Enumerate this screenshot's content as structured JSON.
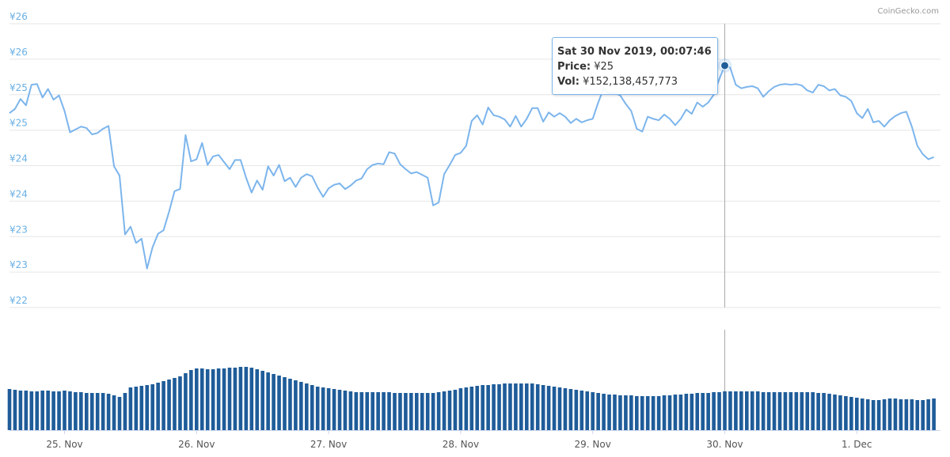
{
  "chart_data": {
    "type": "line",
    "credit": "CoinGecko.com",
    "categories": [
      null,
      null,
      null,
      null,
      null,
      null,
      null,
      null,
      null,
      null,
      "25. Nov",
      null,
      null,
      null,
      null,
      null,
      null,
      null,
      null,
      null,
      null,
      null,
      null,
      null,
      null,
      null,
      null,
      null,
      null,
      null,
      null,
      null,
      null,
      null,
      "26. Nov",
      null,
      null,
      null,
      null,
      null,
      null,
      null,
      null,
      null,
      null,
      null,
      null,
      null,
      null,
      null,
      null,
      null,
      null,
      null,
      null,
      null,
      null,
      null,
      "27. Nov",
      null,
      null,
      null,
      null,
      null,
      null,
      null,
      null,
      null,
      null,
      null,
      null,
      null,
      null,
      null,
      null,
      null,
      null,
      null,
      null,
      null,
      null,
      null,
      "28. Nov",
      null,
      null,
      null,
      null,
      null,
      null,
      null,
      null,
      null,
      null,
      null,
      null,
      null,
      null,
      null,
      null,
      null,
      null,
      null,
      null,
      null,
      null,
      null,
      "29. Nov",
      null,
      null,
      null,
      null,
      null,
      null,
      null,
      null,
      null,
      null,
      null,
      null,
      null,
      null,
      null,
      null,
      null,
      null,
      null,
      null,
      null,
      null,
      null,
      "30. Nov",
      null,
      null,
      null,
      null,
      null,
      null,
      null,
      null,
      null,
      null,
      null,
      null,
      null,
      null,
      null,
      null,
      null,
      null,
      null,
      null,
      null,
      null,
      null,
      "1. Dec",
      null,
      null,
      null,
      null,
      null,
      null,
      null,
      null,
      null,
      null,
      null,
      null,
      null,
      null
    ],
    "series": [
      {
        "color": "#7cb5ec",
        "values": [
          24.74,
          24.8,
          24.94,
          24.85,
          25.14,
          25.15,
          24.96,
          25.08,
          24.93,
          24.99,
          24.77,
          24.47,
          24.51,
          24.55,
          24.53,
          24.44,
          24.46,
          24.52,
          24.56,
          23.99,
          23.86,
          23.03,
          23.14,
          22.91,
          22.97,
          22.55,
          22.85,
          23.04,
          23.09,
          23.35,
          23.64,
          23.67,
          24.43,
          24.06,
          24.09,
          24.32,
          24.01,
          24.13,
          24.15,
          24.05,
          23.95,
          24.08,
          24.08,
          23.83,
          23.62,
          23.79,
          23.66,
          23.99,
          23.86,
          24.01,
          23.78,
          23.83,
          23.7,
          23.83,
          23.88,
          23.85,
          23.69,
          23.56,
          23.68,
          23.73,
          23.75,
          23.67,
          23.72,
          23.79,
          23.82,
          23.95,
          24.01,
          24.03,
          24.02,
          24.19,
          24.17,
          24.02,
          23.95,
          23.89,
          23.91,
          23.87,
          23.83,
          23.44,
          23.48,
          23.88,
          24.01,
          24.15,
          24.18,
          24.28,
          24.63,
          24.71,
          24.58,
          24.82,
          24.71,
          24.69,
          24.65,
          24.55,
          24.7,
          24.55,
          24.66,
          24.81,
          24.81,
          24.62,
          24.75,
          24.69,
          24.74,
          24.69,
          24.6,
          24.66,
          24.61,
          24.64,
          24.66,
          24.89,
          25.09,
          25.02,
          25.02,
          24.99,
          24.87,
          24.77,
          24.52,
          24.48,
          24.69,
          24.66,
          24.64,
          24.72,
          24.66,
          24.57,
          24.66,
          24.79,
          24.73,
          24.89,
          24.83,
          24.89,
          25.0,
          25.22,
          25.41,
          25.38,
          25.14,
          25.09,
          25.11,
          25.12,
          25.09,
          24.97,
          25.05,
          25.11,
          25.14,
          25.15,
          25.14,
          25.15,
          25.13,
          25.06,
          25.03,
          25.14,
          25.12,
          25.06,
          25.08,
          24.99,
          24.97,
          24.91,
          24.74,
          24.67,
          24.8,
          24.61,
          24.63,
          24.55,
          24.64,
          24.7,
          24.74,
          24.76,
          24.55,
          24.28,
          24.16,
          24.09,
          24.12
        ]
      },
      {
        "type": "bar",
        "axis": "y2",
        "color": "#1f5c99",
        "values": [
          161200000000.0,
          158100000000.0,
          155000000000.0,
          155000000000.0,
          151900000000.0,
          151900000000.0,
          155000000000.0,
          155000000000.0,
          151900000000.0,
          151900000000.0,
          155000000000.0,
          151900000000.0,
          148800000000.0,
          148800000000.0,
          145700000000.0,
          145700000000.0,
          145700000000.0,
          145700000000.0,
          142600000000.0,
          136400000000.0,
          130200000000.0,
          145700000000.0,
          167400000000.0,
          170500000000.0,
          173600000000.0,
          176700000000.0,
          179800000000.0,
          186000000000.0,
          192200000000.0,
          198400000000.0,
          204600000000.0,
          210800000000.0,
          223200000000.0,
          235600000000.0,
          241800000000.0,
          241800000000.0,
          238700000000.0,
          238700000000.0,
          241800000000.0,
          241800000000.0,
          244900000000.0,
          244900000000.0,
          248000000000.0,
          248000000000.0,
          244900000000.0,
          238700000000.0,
          232500000000.0,
          226300000000.0,
          220100000000.0,
          213900000000.0,
          207700000000.0,
          201500000000.0,
          195300000000.0,
          189100000000.0,
          182900000000.0,
          176700000000.0,
          170500000000.0,
          167400000000.0,
          164300000000.0,
          161200000000.0,
          158100000000.0,
          155000000000.0,
          151900000000.0,
          148800000000.0,
          148800000000.0,
          148800000000.0,
          148800000000.0,
          148800000000.0,
          148800000000.0,
          148800000000.0,
          145700000000.0,
          145700000000.0,
          145700000000.0,
          145700000000.0,
          145700000000.0,
          145700000000.0,
          145700000000.0,
          145700000000.0,
          148800000000.0,
          151900000000.0,
          155000000000.0,
          158100000000.0,
          164300000000.0,
          167400000000.0,
          170500000000.0,
          173600000000.0,
          176700000000.0,
          176700000000.0,
          179800000000.0,
          179800000000.0,
          182900000000.0,
          182900000000.0,
          182900000000.0,
          182900000000.0,
          182900000000.0,
          182900000000.0,
          179800000000.0,
          176700000000.0,
          173600000000.0,
          170500000000.0,
          167400000000.0,
          164300000000.0,
          161200000000.0,
          158100000000.0,
          155000000000.0,
          151900000000.0,
          148800000000.0,
          145700000000.0,
          142600000000.0,
          139500000000.0,
          139500000000.0,
          136400000000.0,
          136400000000.0,
          136400000000.0,
          133300000000.0,
          133300000000.0,
          133300000000.0,
          133300000000.0,
          133300000000.0,
          136400000000.0,
          136400000000.0,
          139500000000.0,
          139500000000.0,
          142600000000.0,
          142600000000.0,
          145700000000.0,
          145700000000.0,
          145700000000.0,
          148800000000.0,
          148800000000.0,
          152138457773,
          151900000000.0,
          151900000000.0,
          151900000000.0,
          151900000000.0,
          151900000000.0,
          151900000000.0,
          148800000000.0,
          148800000000.0,
          148800000000.0,
          148800000000.0,
          148800000000.0,
          148800000000.0,
          148800000000.0,
          148800000000.0,
          148800000000.0,
          148800000000.0,
          145700000000.0,
          145700000000.0,
          142600000000.0,
          139500000000.0,
          136400000000.0,
          133300000000.0,
          130200000000.0,
          127100000000.0,
          124000000000.0,
          120900000000.0,
          117800000000.0,
          117800000000.0,
          120900000000.0,
          124000000000.0,
          124000000000.0,
          120900000000.0,
          120900000000.0,
          120900000000.0,
          117800000000.0,
          117800000000.0,
          120900000000.0,
          124000000000.0
        ]
      }
    ],
    "ylim": [
      22,
      26
    ],
    "yticks": [
      {
        "value": 22,
        "label": "¥22"
      },
      {
        "value": 22.5,
        "label": "¥23"
      },
      {
        "value": 23,
        "label": "¥23"
      },
      {
        "value": 23.5,
        "label": "¥24"
      },
      {
        "value": 24,
        "label": "¥24"
      },
      {
        "value": 24.5,
        "label": "¥25"
      },
      {
        "value": 25,
        "label": "¥25"
      },
      {
        "value": 25.5,
        "label": "¥26"
      },
      {
        "value": 26,
        "label": "¥26"
      }
    ],
    "grid": true,
    "tooltip": {
      "title": "Sat 30 Nov 2019, 00:07:46",
      "price_label": "Price:",
      "price": "¥25",
      "vol_label": "Vol:",
      "vol": "¥152,138,457,773"
    }
  }
}
